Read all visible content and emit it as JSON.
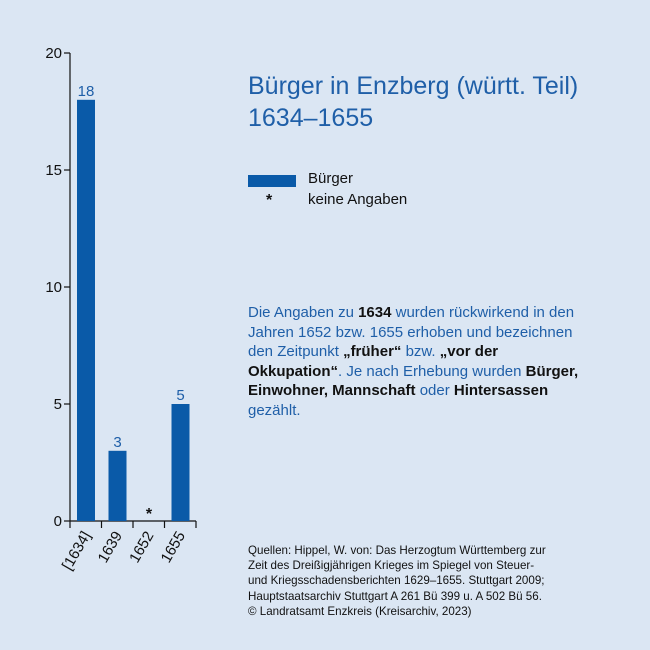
{
  "chart_data": {
    "type": "bar",
    "categories": [
      "[1634]",
      "1639",
      "1652",
      "1655"
    ],
    "values": [
      18,
      3,
      null,
      5
    ],
    "value_labels": [
      "18",
      "3",
      "",
      "5"
    ],
    "missing_marker": "*",
    "ylim": [
      0,
      20
    ],
    "yticks": [
      0,
      5,
      10,
      15,
      20
    ],
    "bar_color": "#0a5aa8",
    "label_color": "#1f5fa8",
    "title": [
      "Bürger in Enzberg (württ. Teil)",
      "1634–1655"
    ],
    "legend": [
      {
        "symbol": "bar",
        "label": "Bürger"
      },
      {
        "symbol": "*",
        "label": "keine Angaben"
      }
    ]
  },
  "note": [
    {
      "text": "Die Angaben zu ",
      "bold": false
    },
    {
      "text": "1634",
      "bold": true
    },
    {
      "text": " wurden rückwirkend in den Jahren 1652 bzw. 1655 erhoben und bezeichnen den Zeitpunkt ",
      "bold": false
    },
    {
      "text": "„früher“",
      "bold": true
    },
    {
      "text": " bzw. ",
      "bold": false
    },
    {
      "text": "„vor der Okkupation“",
      "bold": true
    },
    {
      "text": ". Je nach Erhebung wurden ",
      "bold": false
    },
    {
      "text": "Bürger, Einwohner, Mannschaft",
      "bold": true
    },
    {
      "text": " oder ",
      "bold": false
    },
    {
      "text": "Hintersassen",
      "bold": true
    },
    {
      "text": " gezählt.",
      "bold": false
    }
  ],
  "sources": [
    "Quellen: Hippel, W. von: Das Herzogtum Württemberg zur",
    "Zeit des Dreißigjährigen Krieges im Spiegel von Steuer-",
    "und Kriegsschadensberichten 1629–1655. Stuttgart 2009;",
    "Hauptstaatsarchiv Stuttgart A 261 Bü 399 u. A 502 Bü 56.",
    "© Landratsamt Enzkreis (Kreisarchiv, 2023)"
  ]
}
